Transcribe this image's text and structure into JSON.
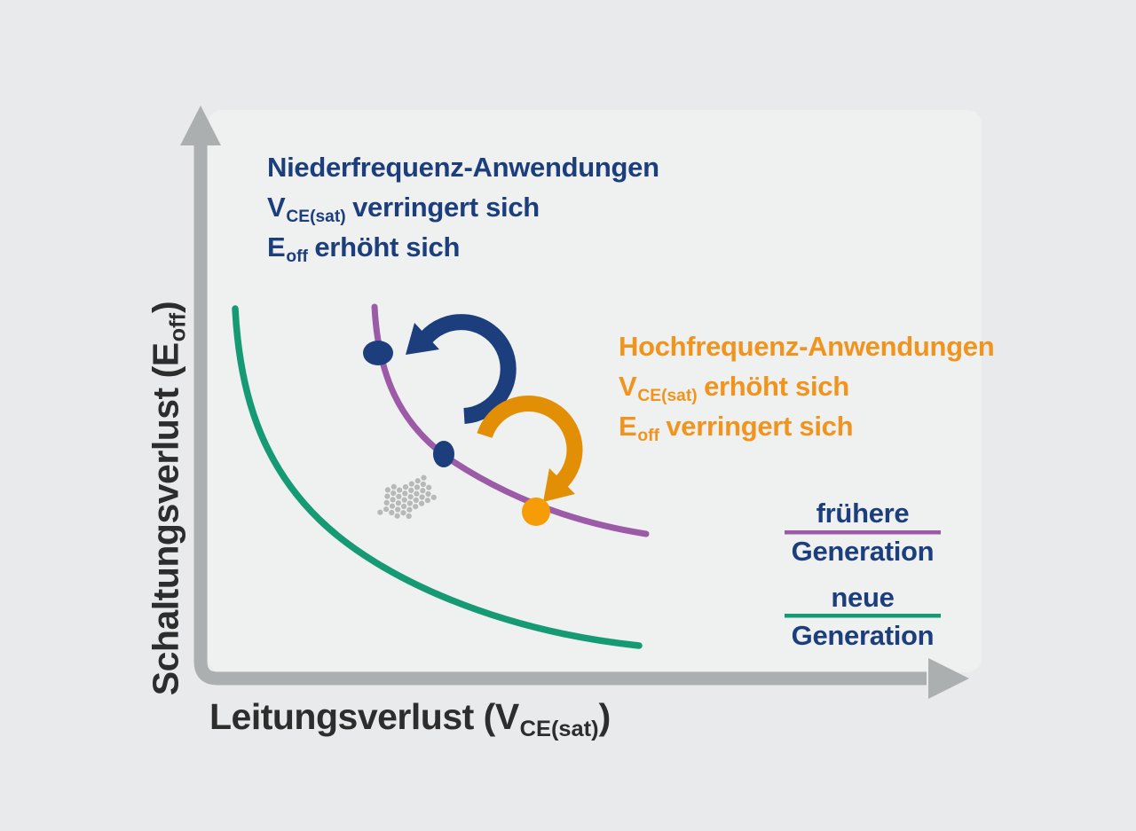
{
  "colors": {
    "background": "#e9eaeb",
    "panel": "#eff0f0",
    "axis_gray": "#acafaf",
    "black_text": "#2d2d2d",
    "navy": "#1c3e7d",
    "orange_text": "#f0941e",
    "orange_arrow": "#e28f05",
    "orange_dot": "#f59c07",
    "purple": "#9b5ba6",
    "teal": "#159a74",
    "halftone_gray": "#b7b9b9"
  },
  "axes": {
    "y_label": {
      "main": "Schaltungsverlust (E",
      "sub": "off",
      "suffix": ")"
    },
    "x_label": {
      "main": "Leitungsverlust (V",
      "sub": "CE(sat)",
      "suffix": ")"
    }
  },
  "annotations": {
    "low_frequency": {
      "title": "Niederfrequenz-Anwendungen",
      "line2_base": "V",
      "line2_sub": "CE(sat)",
      "line2_rest": "verringert sich",
      "line3_base": "E",
      "line3_sub": "off",
      "line3_rest": "erhöht sich"
    },
    "high_frequency": {
      "title": "Hochfrequenz-Anwendungen",
      "line2_base": "V",
      "line2_sub": "CE(sat)",
      "line2_rest": "erhöht sich",
      "line3_base": "E",
      "line3_sub": "off",
      "line3_rest": "verringert sich"
    }
  },
  "legend": {
    "earlier": {
      "label_top": "frühere",
      "label_bottom": "Generation",
      "color": "#9b5ba6"
    },
    "newer": {
      "label_top": "neue",
      "label_bottom": "Generation",
      "color": "#159a74"
    }
  },
  "chart_data": {
    "type": "line",
    "title": "",
    "xlabel": "Leitungsverlust (V_CE(sat))",
    "ylabel": "Schaltungsverlust (E_off)",
    "axis_ticks": "none — qualitative trade-off diagram, axes are unscaled arrows",
    "xlim": [
      0,
      100
    ],
    "ylim": [
      0,
      100
    ],
    "grid": false,
    "legend_position": "right",
    "series": [
      {
        "name": "frühere Generation",
        "color": "#9b5ba6",
        "x": [
          22.7,
          25.9,
          31.7,
          43.9,
          58.1
        ],
        "y": [
          65.3,
          45.9,
          39.3,
          29.6,
          25.4
        ]
      },
      {
        "name": "neue Generation",
        "color": "#159a74",
        "x": [
          4.5,
          9.5,
          15.5,
          36.3,
          57.2
        ],
        "y": [
          64.9,
          38.9,
          28.0,
          11.2,
          5.8
        ]
      }
    ],
    "markers": [
      {
        "on_series": "frühere Generation",
        "x": 23.1,
        "y": 57.2,
        "color": "#1c3e7d"
      },
      {
        "on_series": "frühere Generation",
        "x": 31.7,
        "y": 39.3,
        "color": "#1c3e7d"
      },
      {
        "on_series": "frühere Generation",
        "x": 43.8,
        "y": 29.3,
        "color": "#f59c07"
      }
    ],
    "arrows": [
      {
        "color": "#1c3e7d",
        "shape": "curved",
        "direction": "from middle marker up-left along curve"
      },
      {
        "color": "#e28f05",
        "shape": "curved",
        "direction": "from middle marker down-right along curve"
      },
      {
        "color": "#b7b9b9",
        "shape": "halftone-dot arrow",
        "direction": "down-left, from earlier-generation curve toward new-generation curve"
      }
    ]
  }
}
